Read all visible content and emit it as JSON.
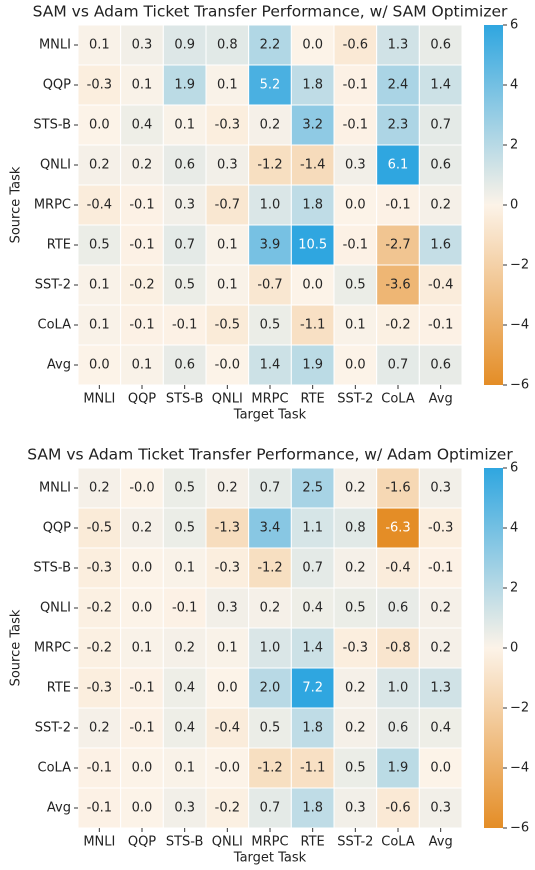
{
  "chart_data": [
    {
      "type": "heatmap",
      "title": "SAM vs Adam Ticket Transfer Performance, w/ SAM Optimizer",
      "x_label": "Target Task",
      "y_label": "Source Task",
      "x_categories": [
        "MNLI",
        "QQP",
        "STS-B",
        "QNLI",
        "MRPC",
        "RTE",
        "SST-2",
        "CoLA",
        "Avg"
      ],
      "y_categories": [
        "MNLI",
        "QQP",
        "STS-B",
        "QNLI",
        "MRPC",
        "RTE",
        "SST-2",
        "CoLA",
        "Avg"
      ],
      "values": [
        [
          0.1,
          0.3,
          0.9,
          0.8,
          2.2,
          0.0,
          -0.6,
          1.3,
          0.6
        ],
        [
          -0.3,
          0.1,
          1.9,
          0.1,
          5.2,
          1.8,
          -0.1,
          2.4,
          1.4
        ],
        [
          0.0,
          0.4,
          0.1,
          -0.3,
          0.2,
          3.2,
          -0.1,
          2.3,
          0.7
        ],
        [
          0.2,
          0.2,
          0.6,
          0.3,
          -1.2,
          -1.4,
          0.3,
          6.1,
          0.6
        ],
        [
          -0.4,
          -0.1,
          0.3,
          -0.7,
          1.0,
          1.8,
          0.0,
          -0.1,
          0.2
        ],
        [
          0.5,
          -0.1,
          0.7,
          0.1,
          3.9,
          10.5,
          -0.1,
          -2.7,
          1.6
        ],
        [
          0.1,
          -0.2,
          0.5,
          0.1,
          -0.7,
          0.0,
          0.5,
          -3.6,
          -0.4
        ],
        [
          0.1,
          -0.1,
          -0.1,
          -0.5,
          0.5,
          -1.1,
          0.1,
          -0.2,
          -0.1
        ],
        [
          0.0,
          0.1,
          0.6,
          0.0,
          1.4,
          1.9,
          0.0,
          0.7,
          0.6
        ]
      ],
      "value_labels": [
        [
          "0.1",
          "0.3",
          "0.9",
          "0.8",
          "2.2",
          "0.0",
          "-0.6",
          "1.3",
          "0.6"
        ],
        [
          "-0.3",
          "0.1",
          "1.9",
          "0.1",
          "5.2",
          "1.8",
          "-0.1",
          "2.4",
          "1.4"
        ],
        [
          "0.0",
          "0.4",
          "0.1",
          "-0.3",
          "0.2",
          "3.2",
          "-0.1",
          "2.3",
          "0.7"
        ],
        [
          "0.2",
          "0.2",
          "0.6",
          "0.3",
          "-1.2",
          "-1.4",
          "0.3",
          "6.1",
          "0.6"
        ],
        [
          "-0.4",
          "-0.1",
          "0.3",
          "-0.7",
          "1.0",
          "1.8",
          "0.0",
          "-0.1",
          "0.2"
        ],
        [
          "0.5",
          "-0.1",
          "0.7",
          "0.1",
          "3.9",
          "10.5",
          "-0.1",
          "-2.7",
          "1.6"
        ],
        [
          "0.1",
          "-0.2",
          "0.5",
          "0.1",
          "-0.7",
          "0.0",
          "0.5",
          "-3.6",
          "-0.4"
        ],
        [
          "0.1",
          "-0.1",
          "-0.1",
          "-0.5",
          "0.5",
          "-1.1",
          "0.1",
          "-0.2",
          "-0.1"
        ],
        [
          "0.0",
          "0.1",
          "0.6",
          "-0.0",
          "1.4",
          "1.9",
          "0.0",
          "0.7",
          "0.6"
        ]
      ],
      "clim": [
        -6,
        6
      ],
      "cticks": [
        {
          "value": -6,
          "label": "−6"
        },
        {
          "value": -4,
          "label": "−4"
        },
        {
          "value": -2,
          "label": "−2"
        },
        0,
        2,
        4,
        6
      ],
      "colors": [
        "#e48d26",
        "#fcf3e8",
        "#2fa6e0"
      ]
    },
    {
      "type": "heatmap",
      "title": "SAM vs Adam Ticket Transfer Performance, w/ Adam Optimizer",
      "x_label": "Target Task",
      "y_label": "Source Task",
      "x_categories": [
        "MNLI",
        "QQP",
        "STS-B",
        "QNLI",
        "MRPC",
        "RTE",
        "SST-2",
        "CoLA",
        "Avg"
      ],
      "y_categories": [
        "MNLI",
        "QQP",
        "STS-B",
        "QNLI",
        "MRPC",
        "RTE",
        "SST-2",
        "CoLA",
        "Avg"
      ],
      "values": [
        [
          0.2,
          0.0,
          0.5,
          0.2,
          0.7,
          2.5,
          0.2,
          -1.6,
          0.3
        ],
        [
          -0.5,
          0.2,
          0.5,
          -1.3,
          3.4,
          1.1,
          0.8,
          -6.3,
          -0.3
        ],
        [
          -0.3,
          0.0,
          0.1,
          -0.3,
          -1.2,
          0.7,
          0.2,
          -0.4,
          -0.1
        ],
        [
          -0.2,
          0.0,
          -0.1,
          0.3,
          0.2,
          0.4,
          0.5,
          0.6,
          0.2
        ],
        [
          -0.2,
          0.1,
          0.2,
          0.1,
          1.0,
          1.4,
          -0.3,
          -0.8,
          0.2
        ],
        [
          -0.3,
          -0.1,
          0.4,
          0.0,
          2.0,
          7.2,
          0.2,
          1.0,
          1.3
        ],
        [
          0.2,
          -0.1,
          0.4,
          -0.4,
          0.5,
          1.8,
          0.2,
          0.6,
          0.4
        ],
        [
          -0.1,
          0.0,
          0.1,
          0.0,
          -1.2,
          -1.1,
          0.5,
          1.9,
          0.0
        ],
        [
          -0.1,
          0.0,
          0.3,
          -0.2,
          0.7,
          1.8,
          0.3,
          -0.6,
          0.3
        ]
      ],
      "value_labels": [
        [
          "0.2",
          "-0.0",
          "0.5",
          "0.2",
          "0.7",
          "2.5",
          "0.2",
          "-1.6",
          "0.3"
        ],
        [
          "-0.5",
          "0.2",
          "0.5",
          "-1.3",
          "3.4",
          "1.1",
          "0.8",
          "-6.3",
          "-0.3"
        ],
        [
          "-0.3",
          "0.0",
          "0.1",
          "-0.3",
          "-1.2",
          "0.7",
          "0.2",
          "-0.4",
          "-0.1"
        ],
        [
          "-0.2",
          "0.0",
          "-0.1",
          "0.3",
          "0.2",
          "0.4",
          "0.5",
          "0.6",
          "0.2"
        ],
        [
          "-0.2",
          "0.1",
          "0.2",
          "0.1",
          "1.0",
          "1.4",
          "-0.3",
          "-0.8",
          "0.2"
        ],
        [
          "-0.3",
          "-0.1",
          "0.4",
          "0.0",
          "2.0",
          "7.2",
          "0.2",
          "1.0",
          "1.3"
        ],
        [
          "0.2",
          "-0.1",
          "0.4",
          "-0.4",
          "0.5",
          "1.8",
          "0.2",
          "0.6",
          "0.4"
        ],
        [
          "-0.1",
          "0.0",
          "0.1",
          "-0.0",
          "-1.2",
          "-1.1",
          "0.5",
          "1.9",
          "0.0"
        ],
        [
          "-0.1",
          "0.0",
          "0.3",
          "-0.2",
          "0.7",
          "1.8",
          "0.3",
          "-0.6",
          "0.3"
        ]
      ],
      "clim": [
        -6,
        6
      ],
      "cticks": [
        {
          "value": -6,
          "label": "−6"
        },
        {
          "value": -4,
          "label": "−4"
        },
        {
          "value": -2,
          "label": "−2"
        },
        0,
        2,
        4,
        6
      ],
      "colors": [
        "#e48d26",
        "#fcf3e8",
        "#2fa6e0"
      ]
    }
  ]
}
